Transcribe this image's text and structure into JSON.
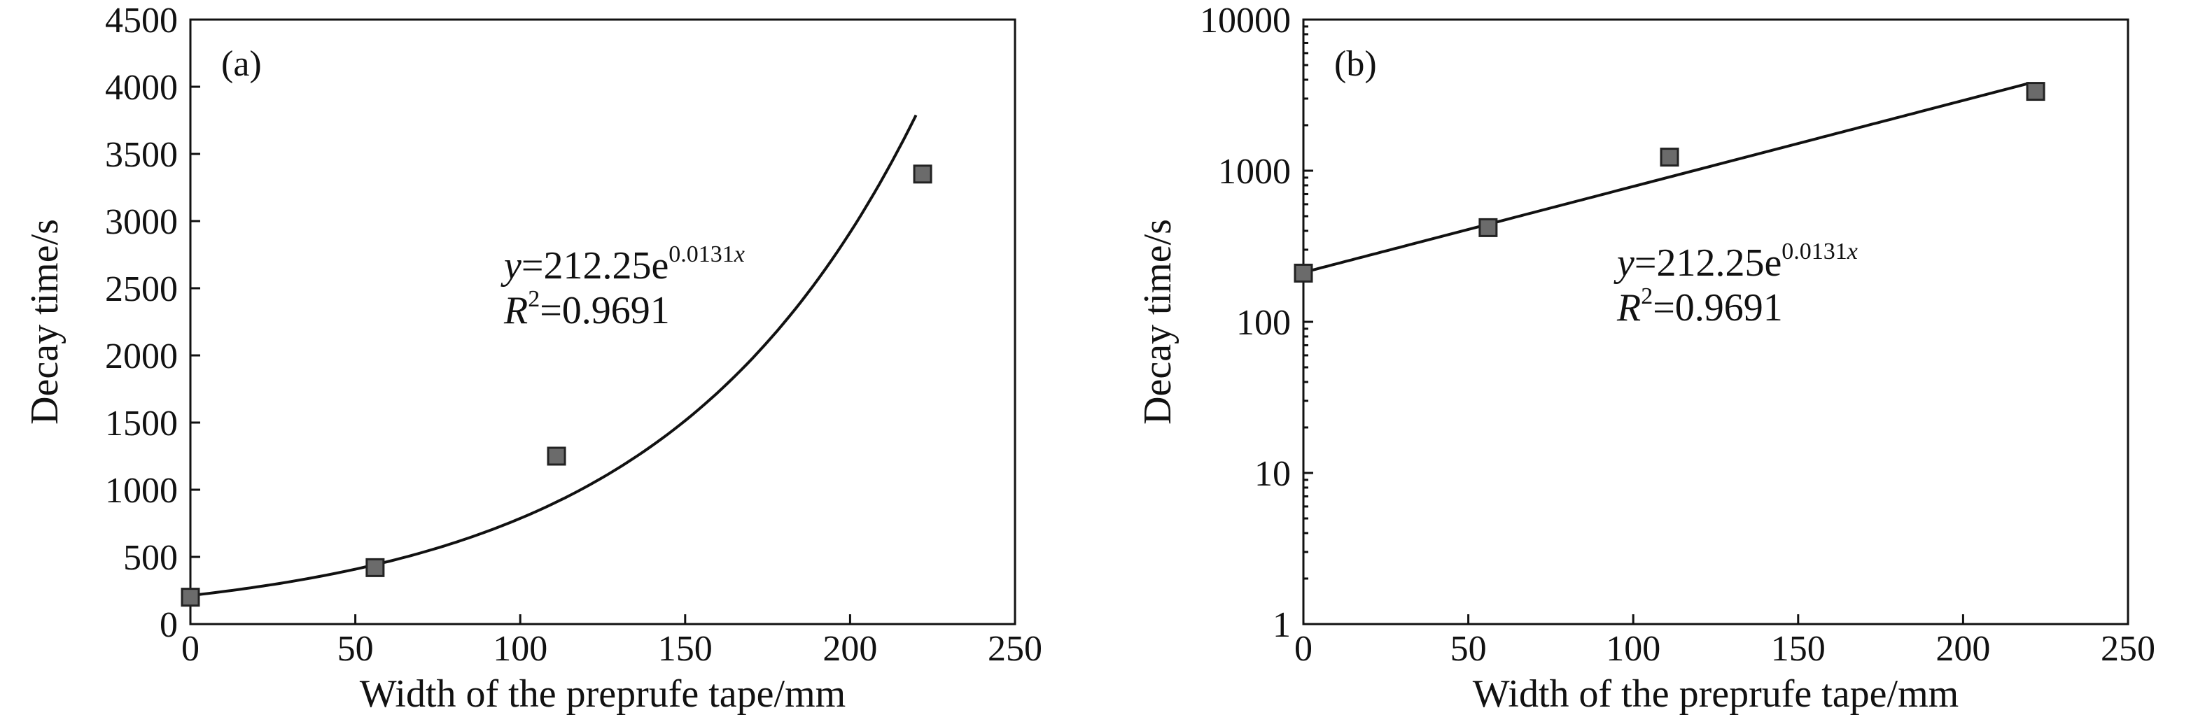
{
  "chart_data": [
    {
      "type": "scatter",
      "panel_label": "(a)",
      "xlabel": "Width of the preprufe tape/mm",
      "ylabel": "Decay time/s",
      "xlim": [
        0,
        250
      ],
      "ylim": [
        0,
        4500
      ],
      "yscale": "linear",
      "xticks": [
        "0",
        "50",
        "100",
        "150",
        "200",
        "250"
      ],
      "yticks": [
        "0",
        "500",
        "1000",
        "1500",
        "2000",
        "2500",
        "3000",
        "3500",
        "4000",
        "4500"
      ],
      "grid": false,
      "points": [
        {
          "x": 0,
          "y": 200
        },
        {
          "x": 56,
          "y": 420
        },
        {
          "x": 111,
          "y": 1250
        },
        {
          "x": 222,
          "y": 3350
        }
      ],
      "fit": {
        "a": 212.25,
        "b": 0.0131,
        "x_range": [
          0,
          220
        ]
      },
      "equation": {
        "y_var": "y",
        "eq_body": "=212.25e",
        "exponent": "0.0131",
        "exp_var": "x",
        "r2_var": "R",
        "r2_sup": "2",
        "r2_body": "=0.9691"
      }
    },
    {
      "type": "scatter",
      "panel_label": "(b)",
      "xlabel": "Width of the preprufe tape/mm",
      "ylabel": "Decay time/s",
      "xlim": [
        0,
        250
      ],
      "ylim": [
        1,
        10000
      ],
      "yscale": "log",
      "xticks": [
        "0",
        "50",
        "100",
        "150",
        "200",
        "250"
      ],
      "yticks": [
        "1",
        "10",
        "100",
        "1000",
        "10000"
      ],
      "grid": false,
      "points": [
        {
          "x": 0,
          "y": 210
        },
        {
          "x": 56,
          "y": 420
        },
        {
          "x": 111,
          "y": 1230
        },
        {
          "x": 222,
          "y": 3350
        }
      ],
      "fit": {
        "a": 212.25,
        "b": 0.0131,
        "x_range": [
          0,
          220
        ]
      },
      "equation": {
        "y_var": "y",
        "eq_body": "=212.25e",
        "exponent": "0.0131",
        "exp_var": "x",
        "r2_var": "R",
        "r2_sup": "2",
        "r2_body": "=0.9691"
      }
    }
  ],
  "colors": {
    "marker_fill": "#6b6b6b",
    "marker_stroke": "#222222",
    "line": "#111111",
    "text": "#111111"
  }
}
